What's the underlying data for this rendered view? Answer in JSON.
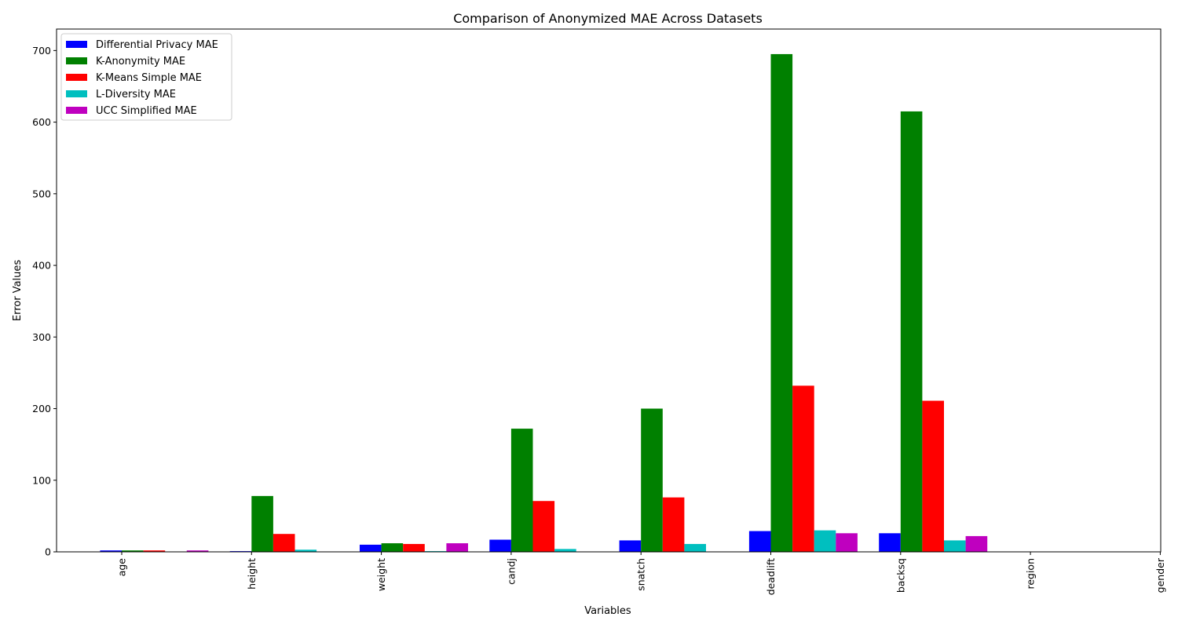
{
  "chart_data": {
    "type": "bar",
    "title": "Comparison of Anonymized MAE Across Datasets",
    "xlabel": "Variables",
    "ylabel": "Error Values",
    "categories": [
      "age",
      "height",
      "weight",
      "candj",
      "snatch",
      "deadlift",
      "backsq",
      "region",
      "gender"
    ],
    "ylim": [
      0,
      730
    ],
    "yticks": [
      0,
      100,
      200,
      300,
      400,
      500,
      600,
      700
    ],
    "legend_position": "top-left",
    "grid": false,
    "series": [
      {
        "name": "Differential Privacy MAE",
        "color": "#0000ff",
        "values": [
          2,
          1,
          10,
          17,
          16,
          29,
          26,
          0,
          0
        ]
      },
      {
        "name": "K-Anonymity MAE",
        "color": "#008000",
        "values": [
          2,
          78,
          12,
          172,
          200,
          695,
          615,
          0,
          0
        ]
      },
      {
        "name": "K-Means Simple MAE",
        "color": "#ff0000",
        "values": [
          2,
          25,
          11,
          71,
          76,
          232,
          211,
          0,
          0
        ]
      },
      {
        "name": "L-Diversity MAE",
        "color": "#00bfbf",
        "values": [
          0,
          3,
          1,
          4,
          11,
          30,
          16,
          0,
          0
        ]
      },
      {
        "name": "UCC Simplified MAE",
        "color": "#bf00bf",
        "values": [
          2,
          0,
          12,
          0,
          0,
          26,
          22,
          0,
          0
        ]
      }
    ]
  }
}
